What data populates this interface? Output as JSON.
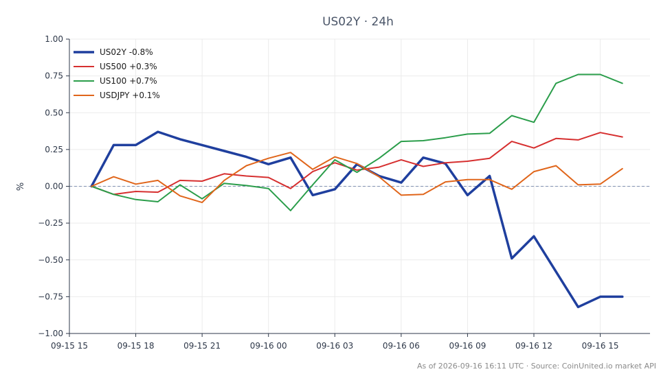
{
  "chart_data": {
    "type": "line",
    "title": "US02Y · 24h",
    "xlabel": "",
    "ylabel": "%",
    "ylim": [
      -1.0,
      1.0
    ],
    "yticks": [
      "1.00",
      "0.75",
      "0.50",
      "0.25",
      "0.00",
      "−0.25",
      "−0.50",
      "−0.75",
      "−1.00"
    ],
    "ytick_values": [
      1.0,
      0.75,
      0.5,
      0.25,
      0.0,
      -0.25,
      -0.5,
      -0.75,
      -1.0
    ],
    "xlim": [
      "2026-09-15 15:00",
      "2026-09-16 17:15"
    ],
    "xticks": [
      "09-15 15",
      "09-15 18",
      "09-15 21",
      "09-16 00",
      "09-16 03",
      "09-16 06",
      "09-16 09",
      "09-16 12",
      "09-16 15"
    ],
    "xtick_values": [
      "2026-09-15 15:00",
      "2026-09-15 18:00",
      "2026-09-15 21:00",
      "2026-09-16 00:00",
      "2026-09-16 03:00",
      "2026-09-16 06:00",
      "2026-09-16 09:00",
      "2026-09-16 12:00",
      "2026-09-16 15:00"
    ],
    "grid": true,
    "zero_line": true,
    "legend_position": "top-left",
    "x": [
      "2026-09-15 16:00",
      "2026-09-15 17:00",
      "2026-09-15 18:00",
      "2026-09-15 19:00",
      "2026-09-15 20:00",
      "2026-09-15 21:00",
      "2026-09-15 22:00",
      "2026-09-15 23:00",
      "2026-09-16 00:00",
      "2026-09-16 01:00",
      "2026-09-16 02:00",
      "2026-09-16 03:00",
      "2026-09-16 04:00",
      "2026-09-16 05:00",
      "2026-09-16 06:00",
      "2026-09-16 07:00",
      "2026-09-16 08:00",
      "2026-09-16 09:00",
      "2026-09-16 10:00",
      "2026-09-16 11:00",
      "2026-09-16 12:00",
      "2026-09-16 13:00",
      "2026-09-16 14:00",
      "2026-09-16 15:00",
      "2026-09-16 16:00"
    ],
    "series": [
      {
        "name": "US02Y -0.8%",
        "color": "#1f3f9e",
        "width": 3.5,
        "values": [
          0.0,
          0.28,
          0.28,
          0.37,
          0.32,
          0.28,
          0.24,
          0.2,
          0.15,
          0.195,
          -0.06,
          -0.02,
          0.15,
          0.07,
          0.025,
          0.195,
          0.155,
          -0.06,
          0.07,
          -0.49,
          -0.34,
          -0.58,
          -0.82,
          -0.75,
          -0.75
        ]
      },
      {
        "name": "US500 +0.3%",
        "color": "#d62f2f",
        "width": 2,
        "values": [
          0.0,
          -0.055,
          -0.035,
          -0.04,
          0.04,
          0.035,
          0.085,
          0.07,
          0.06,
          -0.015,
          0.1,
          0.16,
          0.11,
          0.13,
          0.18,
          0.135,
          0.16,
          0.17,
          0.19,
          0.305,
          0.26,
          0.325,
          0.315,
          0.365,
          0.335
        ]
      },
      {
        "name": "US100 +0.7%",
        "color": "#2a9d4a",
        "width": 2,
        "values": [
          0.0,
          -0.055,
          -0.09,
          -0.105,
          0.01,
          -0.085,
          0.02,
          0.005,
          -0.015,
          -0.165,
          0.01,
          0.18,
          0.095,
          0.19,
          0.305,
          0.31,
          0.33,
          0.355,
          0.36,
          0.48,
          0.435,
          0.7,
          0.76,
          0.76,
          0.7
        ]
      },
      {
        "name": "USDJPY +0.1%",
        "color": "#e0651a",
        "width": 2,
        "values": [
          0.0,
          0.065,
          0.015,
          0.04,
          -0.065,
          -0.11,
          0.04,
          0.14,
          0.19,
          0.23,
          0.115,
          0.2,
          0.155,
          0.065,
          -0.06,
          -0.055,
          0.03,
          0.045,
          0.045,
          -0.02,
          0.1,
          0.14,
          0.01,
          0.015,
          0.12
        ]
      }
    ]
  },
  "footer": "As of 2026-09-16 16:11 UTC · Source: CoinUnited.io market API",
  "colors": {
    "grid": "#ebebeb",
    "axis": "#2d3748",
    "zero_line": "#8090b0"
  }
}
